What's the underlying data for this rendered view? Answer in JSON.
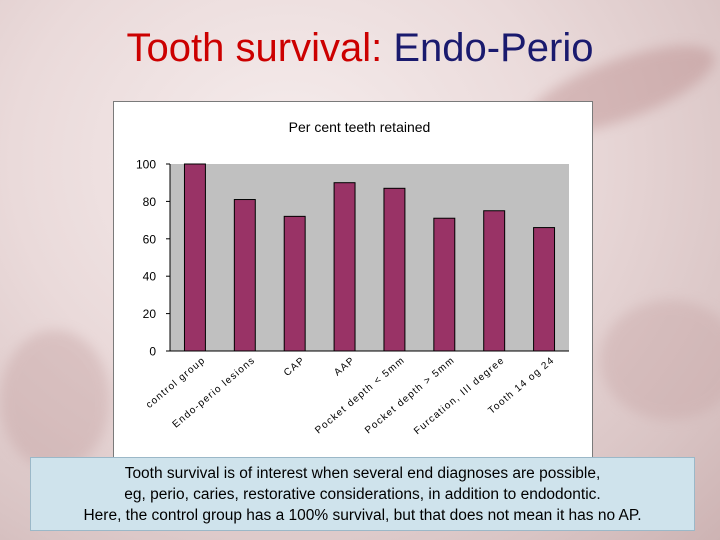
{
  "slide": {
    "title_part1": "Tooth survival:",
    "title_part2": "Endo-Perio",
    "caption_lines": [
      "Tooth survival is of interest when several end diagnoses are possible,",
      "eg, perio, caries, restorative considerations, in addition to endodontic.",
      "Here, the control group has a 100% survival, but that does not mean it has no AP."
    ]
  },
  "colors": {
    "bar_fill": "#993366",
    "title_red": "#cc0000",
    "title_blue": "#1a1a6e",
    "caption_bg": "#cfe3ec"
  },
  "chart_data": {
    "type": "bar",
    "title": "Per cent teeth retained",
    "categories": [
      "control group",
      "Endo-perio lesions",
      "CAP",
      "AAP",
      "Pocket depth < 5mm",
      "Pocket depth > 5mm",
      "Furcation, III degree",
      "Tooth 14 og 24"
    ],
    "values": [
      100,
      81,
      72,
      90,
      87,
      71,
      75,
      66
    ],
    "yticks": [
      0,
      20,
      40,
      60,
      80,
      100
    ],
    "ylim": [
      0,
      100
    ],
    "xlabel": "",
    "ylabel": "",
    "grid": false,
    "legend": "none"
  }
}
